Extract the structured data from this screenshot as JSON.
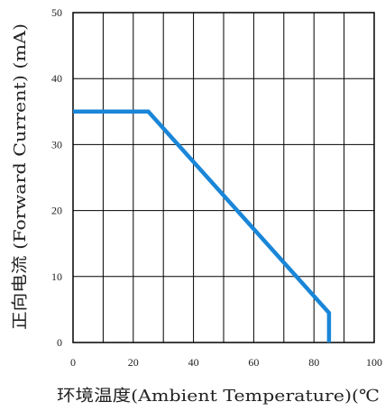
{
  "chart_data": {
    "type": "line",
    "xlabel": "环境温度(Ambient Temperature)(℃",
    "ylabel": "正向电流 (Forward Current) (mA)",
    "xlim": [
      0,
      100
    ],
    "ylim": [
      0,
      50
    ],
    "x_ticks": [
      "0",
      "20",
      "40",
      "60",
      "80",
      "100"
    ],
    "y_ticks": [
      "0",
      "10",
      "20",
      "30",
      "40",
      "50"
    ],
    "grid": true,
    "series": [
      {
        "color": "#1a86d8",
        "points": [
          {
            "x": 0,
            "y": 35
          },
          {
            "x": 25,
            "y": 35
          },
          {
            "x": 85,
            "y": 4.5
          },
          {
            "x": 85,
            "y": 0
          }
        ]
      }
    ]
  }
}
